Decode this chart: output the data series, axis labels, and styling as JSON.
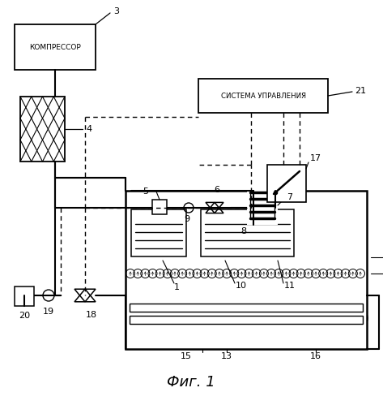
{
  "title": "Фиг. 1",
  "bg_color": "#ffffff",
  "kompressor_label": "КОМПРЕССОР",
  "sistema_label": "СИСТЕМА УПРАВЛЕНИЯ"
}
